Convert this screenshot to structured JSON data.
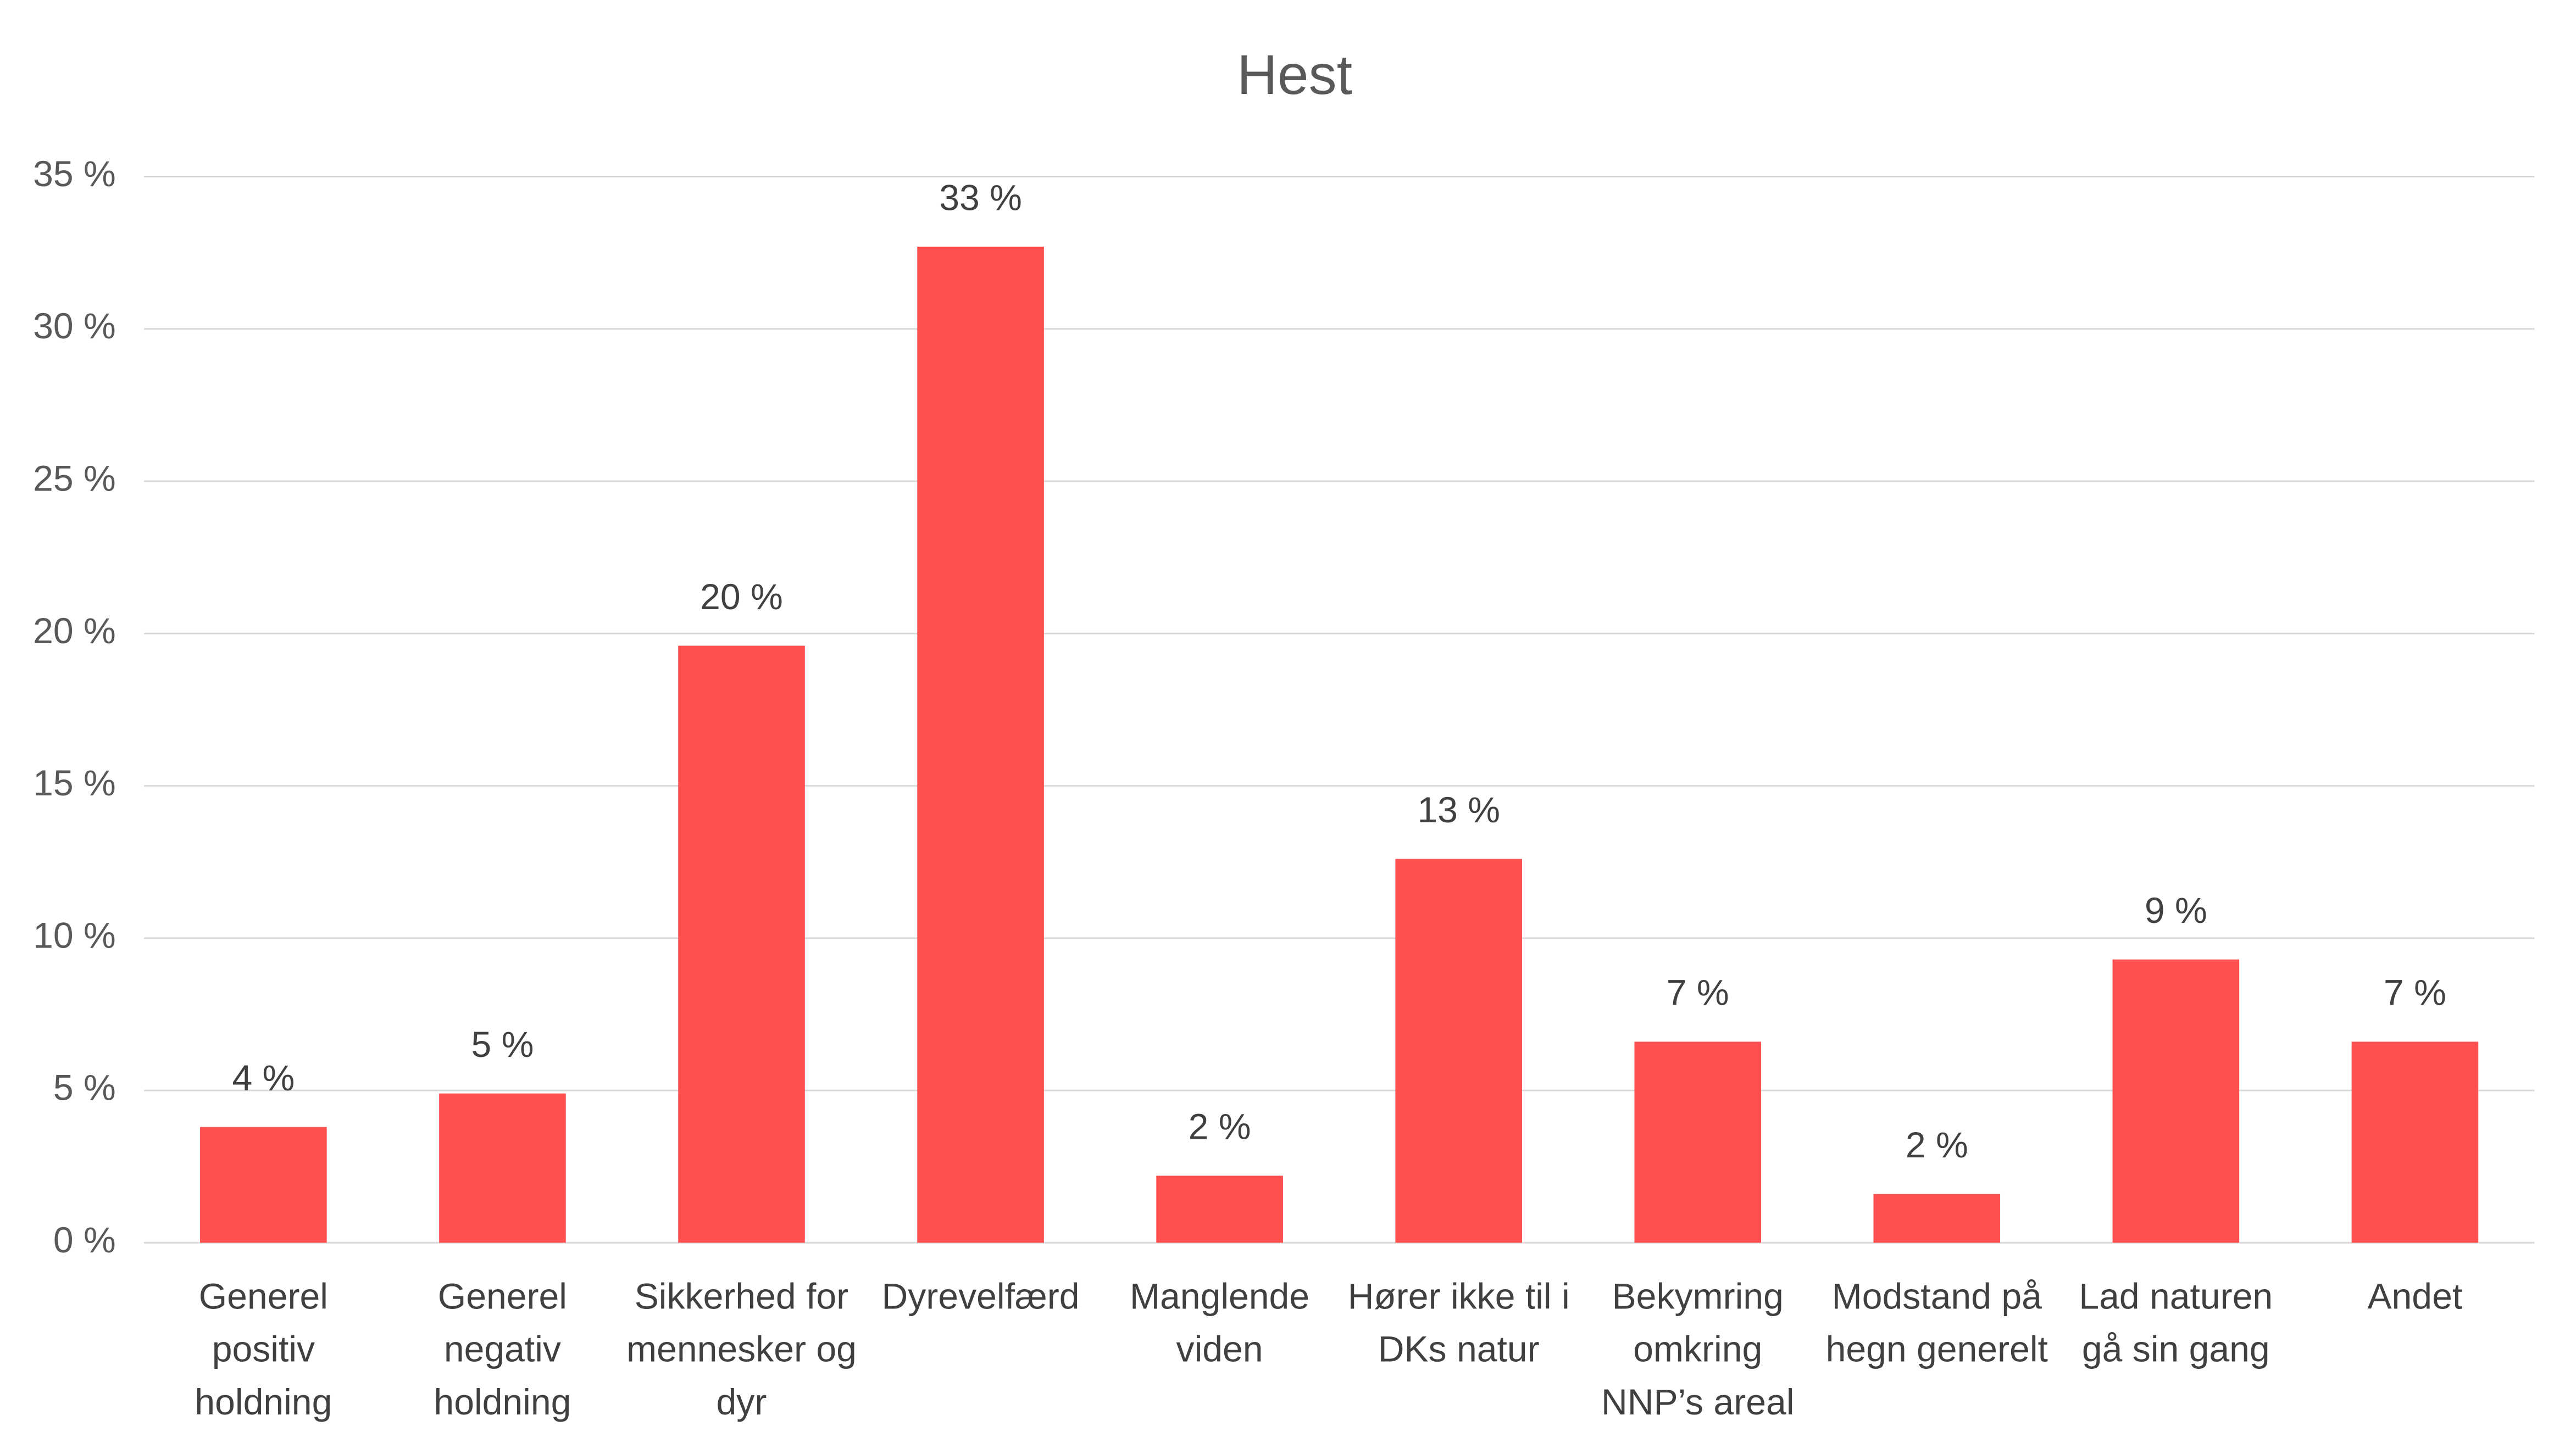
{
  "chart_data": {
    "type": "bar",
    "title": "Hest",
    "categories": [
      "Generel positiv holdning",
      "Generel negativ holdning",
      "Sikkerhed for mennesker og dyr",
      "Dyrevelfærd",
      "Manglende viden",
      "Hører ikke til i DKs natur",
      "Bekymring omkring NNP’s areal",
      "Modstand på hegn generelt",
      "Lad naturen gå sin gang",
      "Andet"
    ],
    "values": [
      3.8,
      4.9,
      19.6,
      32.7,
      2.2,
      12.6,
      6.6,
      1.6,
      9.3,
      6.6
    ],
    "value_labels": [
      "4 %",
      "5 %",
      "20 %",
      "33 %",
      "2 %",
      "13 %",
      "7 %",
      "2 %",
      "9 %",
      "7 %"
    ],
    "color": "#ff4f4f",
    "ylim": [
      0,
      35
    ],
    "yticks": [
      {
        "value": 0,
        "label": "0 %"
      },
      {
        "value": 5,
        "label": "5 %"
      },
      {
        "value": 10,
        "label": "10 %"
      },
      {
        "value": 15,
        "label": "15 %"
      },
      {
        "value": 20,
        "label": "20 %"
      },
      {
        "value": 25,
        "label": "25 %"
      },
      {
        "value": 30,
        "label": "30 %"
      },
      {
        "value": 35,
        "label": "35 %"
      }
    ],
    "grid": true
  }
}
